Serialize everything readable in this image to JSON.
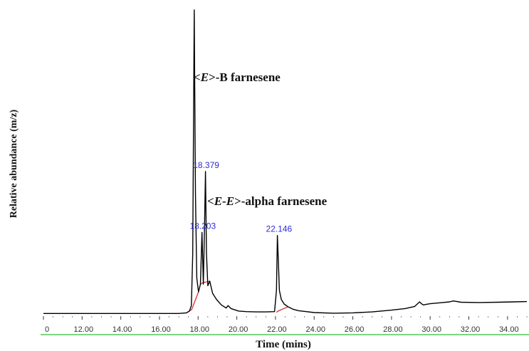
{
  "chart_data": {
    "type": "line",
    "xlabel": "Time (mins)",
    "ylabel": "Relative abundance (m/z)",
    "xlim": [
      10.0,
      35.0
    ],
    "ylim": [
      0,
      100
    ],
    "x_ticks": [
      "0",
      "12.00",
      "14.00",
      "16.00",
      "18.00",
      "20.00",
      "22.00",
      "24.00",
      "26.00",
      "28.00",
      "30.00",
      "32.00",
      "34.00"
    ],
    "series": [
      {
        "x": [
          10.0,
          11.0,
          12.0,
          13.0,
          14.0,
          15.0,
          16.0,
          17.0,
          17.4,
          17.55,
          17.65,
          17.72,
          17.8,
          17.86,
          17.93,
          18.02,
          18.12,
          18.2,
          18.27,
          18.33,
          18.38,
          18.43,
          18.5,
          18.6,
          18.75,
          18.95,
          19.2,
          19.45,
          19.55,
          19.7,
          19.9,
          20.1,
          20.5,
          21.0,
          21.5,
          21.95,
          22.05,
          22.1,
          22.146,
          22.2,
          22.3,
          22.45,
          22.65,
          22.9,
          23.2,
          23.6,
          24.0,
          25.0,
          26.0,
          27.0,
          28.0,
          28.7,
          29.2,
          29.45,
          29.55,
          29.65,
          29.8,
          30.0,
          30.5,
          31.0,
          31.2,
          31.6,
          32.5,
          33.5,
          34.3,
          35.0
        ],
        "y": [
          0.4,
          0.4,
          0.4,
          0.4,
          0.4,
          0.4,
          0.4,
          0.4,
          0.6,
          1.2,
          3.0,
          20.0,
          100.0,
          40.0,
          12.0,
          7.5,
          10.0,
          27.0,
          10.0,
          28.0,
          47.0,
          20.0,
          9.5,
          11.0,
          7.0,
          5.0,
          3.2,
          2.2,
          3.0,
          2.0,
          1.6,
          1.2,
          1.0,
          0.9,
          0.9,
          1.0,
          8.0,
          26.0,
          18.0,
          8.0,
          5.0,
          3.5,
          2.6,
          1.8,
          1.3,
          1.0,
          0.7,
          0.5,
          0.6,
          0.9,
          1.5,
          2.0,
          2.7,
          4.2,
          3.6,
          3.2,
          3.4,
          3.6,
          3.9,
          4.2,
          4.5,
          4.1,
          4.0,
          4.1,
          4.2,
          4.3
        ]
      }
    ],
    "peak_labels": [
      {
        "text": "18.379",
        "x": 18.379,
        "y": 47.0
      },
      {
        "text": "18.203",
        "x": 18.203,
        "y": 27.0
      },
      {
        "text": "22.146",
        "x": 22.146,
        "y": 26.0
      }
    ],
    "annotations": {
      "beta": {
        "prefix": "<",
        "italic": "E",
        "suffix": ">-B farnesene"
      },
      "alpha": {
        "prefix": "<",
        "italic1": "E",
        "mid": "-",
        "italic2": "E",
        "suffix": ">-alpha farnesene"
      }
    },
    "colors": {
      "trace": "#000000",
      "baseline": "#d62020",
      "peak_label": "#2b2bd6",
      "axis_line": "#7fd67f"
    }
  }
}
